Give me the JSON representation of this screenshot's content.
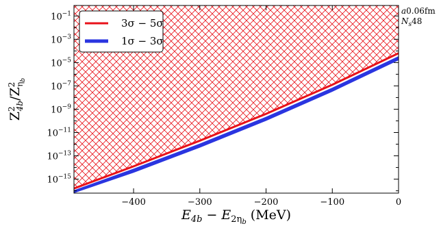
{
  "chart_data": {
    "type": "area",
    "xlabel_html": "E_{4b} − E_{2η_b} (MeV)",
    "xlabel": {
      "main": "E",
      "sub1": "4b",
      "mid": " − E",
      "sub2": "2η",
      "sub3": "b",
      "unit": " (MeV)"
    },
    "ylabel": {
      "z1": "Z",
      "sup1": "2",
      "sub1": "4b",
      "slash": "/Z",
      "sup2": "2",
      "sub2": "η",
      "sub3": "b"
    },
    "xlim": [
      -490,
      0
    ],
    "ylim_log10": [
      -16.2,
      -0.1
    ],
    "yscale": "log",
    "x_ticks": [
      {
        "value": -400,
        "label": "−400"
      },
      {
        "value": -300,
        "label": "−300"
      },
      {
        "value": -200,
        "label": "−200"
      },
      {
        "value": -100,
        "label": "−100"
      },
      {
        "value": 0,
        "label": "0"
      }
    ],
    "y_ticks": [
      {
        "exp": -1,
        "base": "10",
        "sup": "−1"
      },
      {
        "exp": -3,
        "base": "10",
        "sup": "−3"
      },
      {
        "exp": -5,
        "base": "10",
        "sup": "−5"
      },
      {
        "exp": -7,
        "base": "10",
        "sup": "−7"
      },
      {
        "exp": -9,
        "base": "10",
        "sup": "−9"
      },
      {
        "exp": -11,
        "base": "10",
        "sup": "−11"
      },
      {
        "exp": -13,
        "base": "10",
        "sup": "−13"
      },
      {
        "exp": -15,
        "base": "10",
        "sup": "−15"
      }
    ],
    "series": [
      {
        "name": "3σ − 5σ",
        "color": "#e8121a",
        "style": "line+hatched-region-above",
        "x": [
          -490,
          -400,
          -300,
          -200,
          -100,
          0
        ],
        "log10_y": [
          -15.8,
          -13.9,
          -11.7,
          -9.4,
          -6.9,
          -4.2
        ]
      },
      {
        "name": "1σ − 3σ",
        "color": "#2a35e0",
        "style": "band",
        "x": [
          -490,
          -400,
          -300,
          -200,
          -100,
          0
        ],
        "log10_upper": [
          -15.95,
          -14.1,
          -11.95,
          -9.65,
          -7.15,
          -4.45
        ],
        "log10_lower": [
          -16.2,
          -14.45,
          -12.3,
          -10.0,
          -7.5,
          -4.8
        ]
      }
    ],
    "legend": {
      "placement": "top-left"
    },
    "grid": false
  },
  "annotation": {
    "line1_a": "a",
    "line1_rest": "0.06fm",
    "line2_n": "N",
    "line2_sub": "s",
    "line2_rest": "48"
  }
}
